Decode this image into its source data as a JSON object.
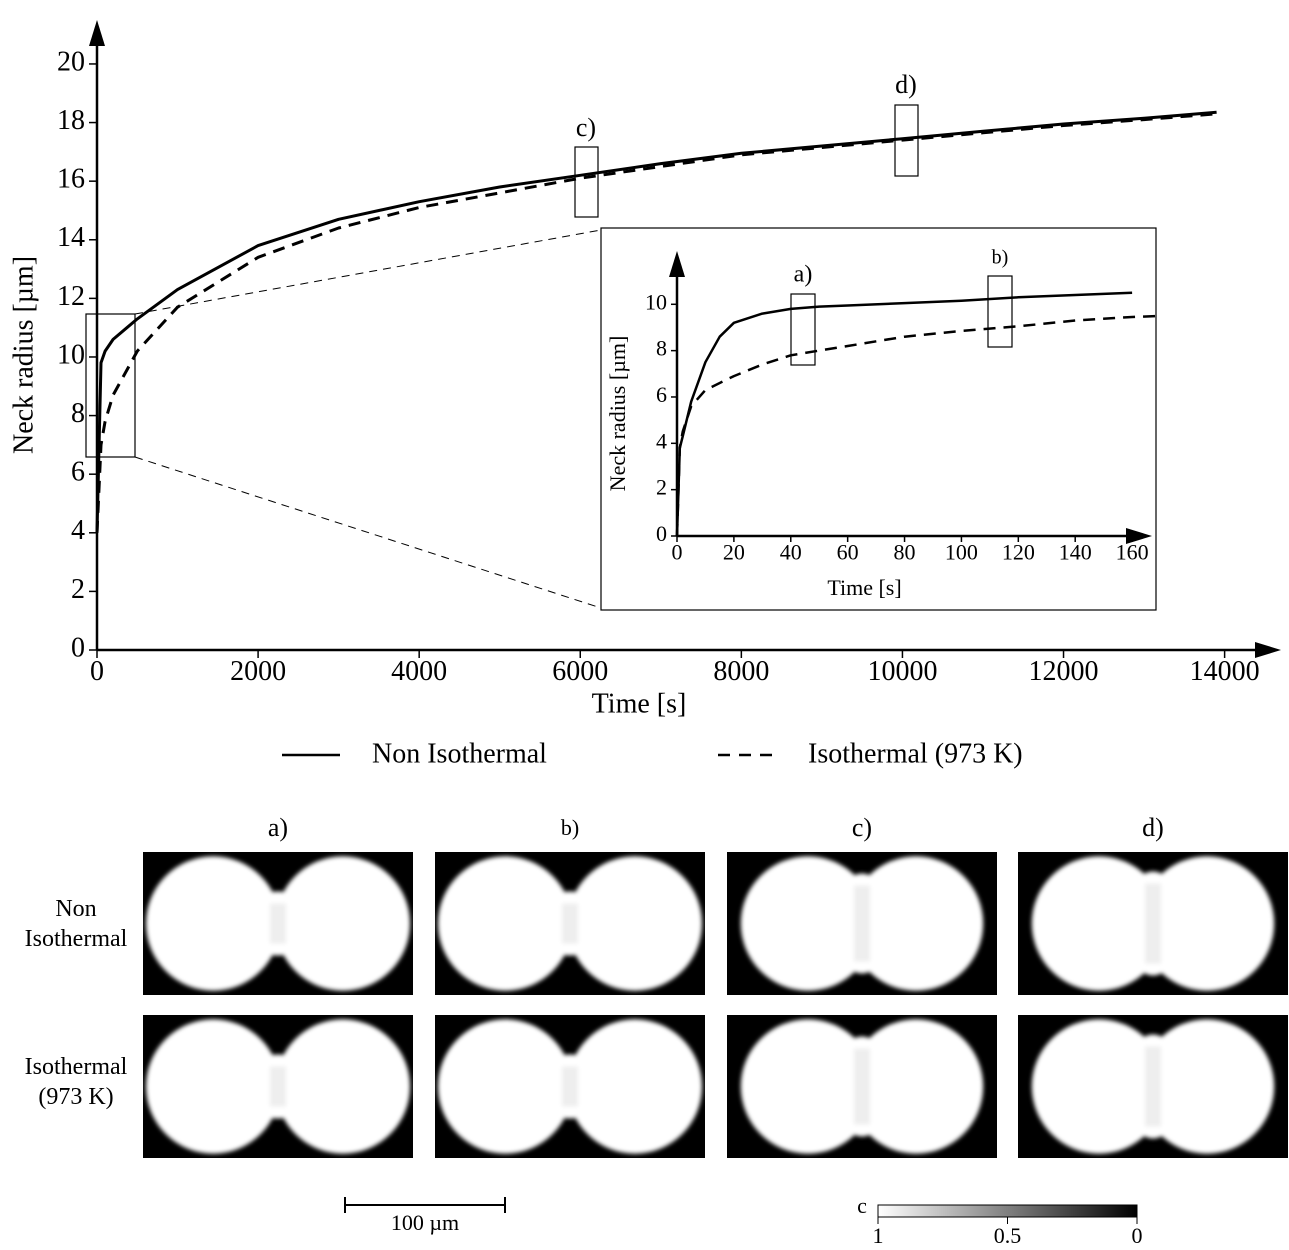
{
  "chart_data": [
    {
      "type": "line",
      "xlabel": "Time [s]",
      "ylabel": "Neck radius [µm]",
      "xlim": [
        0,
        14700
      ],
      "ylim": [
        0,
        21.5
      ],
      "xticks": [
        0,
        2000,
        4000,
        6000,
        8000,
        10000,
        12000,
        14000
      ],
      "yticks": [
        0,
        2,
        4,
        6,
        8,
        10,
        12,
        14,
        16,
        18,
        20
      ],
      "annotations": [
        "c)",
        "d)"
      ],
      "series": [
        {
          "name": "Non Isothermal",
          "color": "#000000",
          "style": "solid",
          "x": [
            0,
            50,
            100,
            200,
            500,
            1000,
            2000,
            3000,
            4000,
            5000,
            6000,
            7000,
            8000,
            9000,
            10000,
            11000,
            12000,
            13000,
            13900
          ],
          "values": [
            4,
            9.8,
            10.2,
            10.6,
            11.3,
            12.3,
            13.8,
            14.7,
            15.3,
            15.8,
            16.2,
            16.6,
            16.95,
            17.2,
            17.45,
            17.7,
            17.95,
            18.15,
            18.35
          ]
        },
        {
          "name": "Isothermal (973 K)",
          "color": "#000000",
          "style": "dashed",
          "x": [
            0,
            50,
            100,
            200,
            500,
            1000,
            2000,
            3000,
            4000,
            5000,
            6000,
            7000,
            8000,
            9000,
            10000,
            11000,
            12000,
            13000,
            13900
          ],
          "values": [
            4,
            7,
            7.8,
            8.7,
            10.2,
            11.7,
            13.4,
            14.4,
            15.1,
            15.6,
            16.1,
            16.5,
            16.9,
            17.15,
            17.4,
            17.65,
            17.9,
            18.1,
            18.3
          ]
        }
      ]
    },
    {
      "type": "line",
      "xlabel": "Time [s]",
      "ylabel": "Neck radius [µm]",
      "xlim": [
        0,
        167
      ],
      "ylim": [
        0,
        12.3
      ],
      "xticks": [
        0,
        20,
        40,
        60,
        80,
        100,
        120,
        140,
        160
      ],
      "yticks": [
        0,
        2,
        4,
        6,
        8,
        10
      ],
      "annotations": [
        "a)",
        "b)"
      ],
      "series": [
        {
          "color": "#000000",
          "style": "solid",
          "x": [
            0,
            1,
            2,
            5,
            10,
            15,
            20,
            30,
            40,
            50,
            60,
            80,
            100,
            120,
            140,
            160
          ],
          "values": [
            0,
            3.8,
            4.3,
            5.8,
            7.5,
            8.6,
            9.2,
            9.6,
            9.8,
            9.9,
            9.95,
            10.05,
            10.15,
            10.3,
            10.4,
            10.5
          ]
        },
        {
          "color": "#000000",
          "style": "dashed",
          "x": [
            0,
            1,
            2,
            5,
            10,
            20,
            30,
            40,
            50,
            60,
            80,
            100,
            120,
            140,
            160,
            170
          ],
          "values": [
            0,
            3.8,
            4.5,
            5.6,
            6.3,
            6.9,
            7.4,
            7.8,
            8.0,
            8.2,
            8.6,
            8.85,
            9.05,
            9.3,
            9.45,
            9.5
          ]
        }
      ]
    }
  ],
  "panels": {
    "columns": [
      "a)",
      "b)",
      "c)",
      "d)"
    ],
    "rows": [
      "Non Isothermal",
      "Isothermal (973 K)"
    ],
    "scale_bar": "100 µm",
    "colorbar": {
      "label": "c",
      "ticks": [
        1,
        {
          "value": 0.5,
          "label": "0.5"
        },
        0
      ]
    }
  }
}
